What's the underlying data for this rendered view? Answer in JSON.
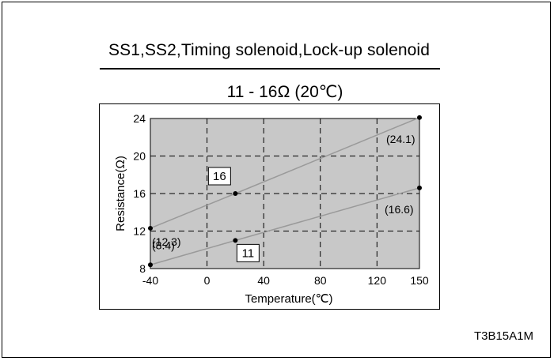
{
  "figure": {
    "title": "SS1,SS2,Timing solenoid,Lock-up solenoid",
    "subtitle": "11 - 16Ω (20℃)",
    "code": "T3B15A1M"
  },
  "chart_data": {
    "type": "line",
    "title": "11 - 16Ω (20℃)",
    "xlabel": "Temperature(℃)",
    "ylabel": "Resistance(Ω)",
    "xlim": [
      -40,
      150
    ],
    "ylim": [
      8,
      24
    ],
    "x_ticks": [
      -40,
      0,
      40,
      80,
      120,
      150
    ],
    "y_ticks": [
      8,
      12,
      16,
      20,
      24
    ],
    "grid": true,
    "grid_style": "dashed",
    "plot_background": "#c8c8c8",
    "line_color": "#9a9a9a",
    "series": [
      {
        "x": [
          -40,
          20,
          150
        ],
        "y": [
          12.3,
          16,
          24.1
        ],
        "labels": [
          "(12.3)",
          "16",
          "(24.1)"
        ],
        "boxed": [
          false,
          true,
          false
        ]
      },
      {
        "x": [
          -40,
          20,
          150
        ],
        "y": [
          8.4,
          11,
          16.6
        ],
        "labels": [
          "(8.4)",
          "11",
          "(16.6)"
        ],
        "boxed": [
          false,
          true,
          false
        ]
      }
    ]
  }
}
